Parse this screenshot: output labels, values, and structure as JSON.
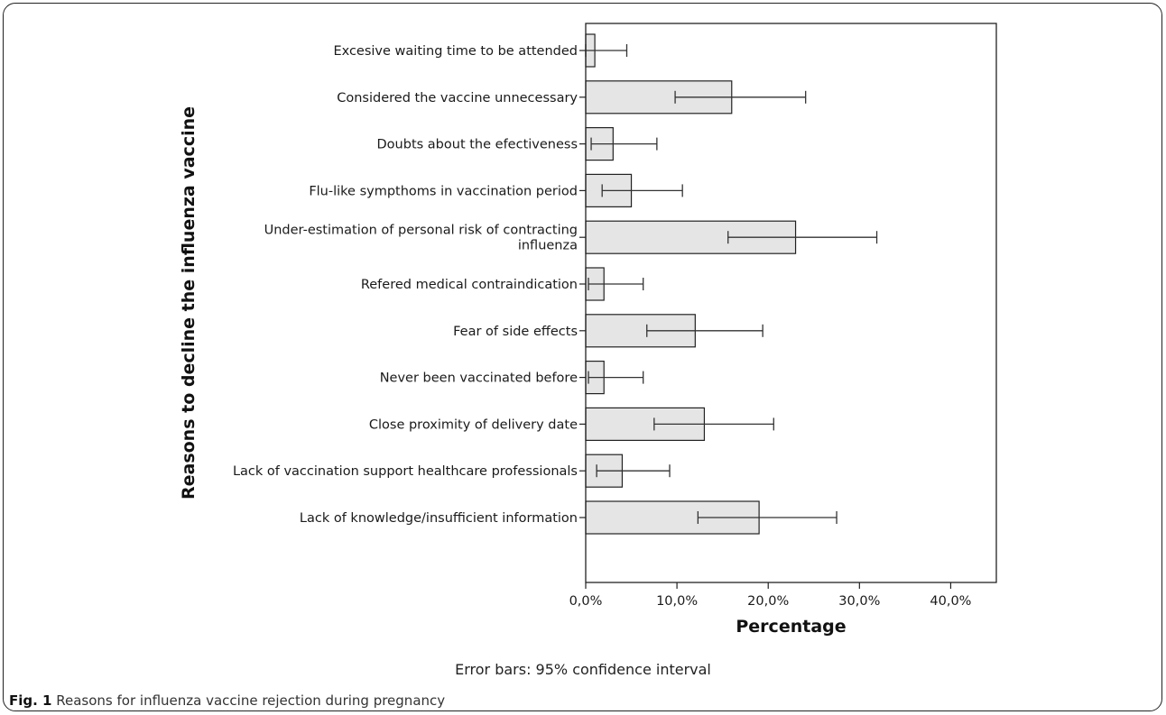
{
  "chart_data": {
    "type": "bar",
    "orientation": "horizontal",
    "categories": [
      "Excesive waiting time to be attended",
      "Considered the vaccine unnecessary",
      "Doubts about the efectiveness",
      "Flu-like sympthoms in vaccination period",
      "Under-estimation of personal risk of contracting influenza",
      "Refered medical contraindication",
      "Fear of side effects",
      "Never been vaccinated before",
      "Close proximity of delivery date",
      "Lack of vaccination support healthcare professionals",
      "Lack of knowledge/insufficient information"
    ],
    "category_label_lines": [
      [
        "Excesive waiting time to be attended"
      ],
      [
        "Considered the vaccine unnecessary"
      ],
      [
        "Doubts about the efectiveness"
      ],
      [
        "Flu-like sympthoms in vaccination period"
      ],
      [
        "Under-estimation of personal risk of contracting",
        "influenza"
      ],
      [
        "Refered medical contraindication"
      ],
      [
        "Fear of side effects"
      ],
      [
        "Never been vaccinated before"
      ],
      [
        "Close proximity of delivery date"
      ],
      [
        "Lack of vaccination support healthcare professionals"
      ],
      [
        "Lack of knowledge/insufficient information"
      ]
    ],
    "values": [
      1,
      16,
      3,
      5,
      23,
      2,
      12,
      2,
      13,
      4,
      19
    ],
    "ci_lower": [
      0.0,
      9.8,
      0.6,
      1.8,
      15.6,
      0.3,
      6.7,
      0.3,
      7.5,
      1.2,
      12.3
    ],
    "ci_upper": [
      4.5,
      24.1,
      7.8,
      10.6,
      31.9,
      6.3,
      19.4,
      6.3,
      20.6,
      9.2,
      27.5
    ],
    "xlim": [
      0,
      45
    ],
    "xticks": [
      0,
      10,
      20,
      30,
      40
    ],
    "xtick_labels": [
      "0,0%",
      "10,0%",
      "20,0%",
      "30,0%",
      "40,0%"
    ],
    "xlabel": "Percentage",
    "ylabel": "Reasons to decline the influenza vaccine",
    "footnote": "Error bars: 95% confidence interval",
    "bar_color": "#e5e5e5",
    "bar_edge_color": "#222222",
    "grid": false
  },
  "caption": {
    "label": "Fig. 1",
    "text": " Reasons for influenza vaccine rejection during pregnancy"
  }
}
